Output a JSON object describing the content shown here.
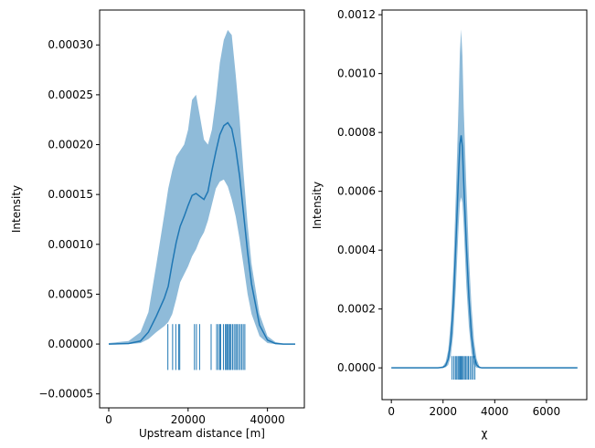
{
  "colors": {
    "line": "#1f77b4",
    "band": "#1f77b4",
    "rug": "#1f77b4",
    "axis": "#000000"
  },
  "chart_data": [
    {
      "type": "line",
      "xlabel": "Upstream distance [m]",
      "ylabel": "Intensity",
      "xlim": [
        -2300,
        49300
      ],
      "ylim": [
        -6.4e-05,
        0.000335
      ],
      "x_ticks": [
        0,
        20000,
        40000
      ],
      "x_tick_labels": [
        "0",
        "20000",
        "40000"
      ],
      "y_ticks": [
        -5e-05,
        0,
        5e-05,
        0.0001,
        0.00015,
        0.0002,
        0.00025,
        0.0003
      ],
      "y_tick_labels": [
        "−0.00005",
        "0.00000",
        "0.00005",
        "0.00010",
        "0.00015",
        "0.00020",
        "0.00025",
        "0.00030"
      ],
      "series": [
        {
          "x": [
            0,
            5000,
            8000,
            10000,
            12000,
            14000,
            15000,
            16000,
            17000,
            18000,
            19000,
            20000,
            21000,
            22000,
            23000,
            24000,
            25000,
            26000,
            27000,
            28000,
            29000,
            30000,
            31000,
            32000,
            33000,
            34000,
            35000,
            36000,
            38000,
            40000,
            42000,
            44000,
            47000
          ],
          "y": [
            0,
            5e-07,
            3e-06,
            1.2e-05,
            2.8e-05,
            4.6e-05,
            5.8e-05,
            8.1e-05,
            0.000102,
            0.000118,
            0.000128,
            0.000139,
            0.000149,
            0.000151,
            0.000148,
            0.000145,
            0.000153,
            0.000174,
            0.000193,
            0.00021,
            0.000219,
            0.000222,
            0.000216,
            0.000196,
            0.000168,
            0.00013,
            9.2e-05,
            6e-05,
            1.9e-05,
            4e-06,
            5e-07,
            0,
            0
          ]
        }
      ],
      "band": {
        "x": [
          0,
          5000,
          8000,
          10000,
          12000,
          14000,
          15000,
          16000,
          17000,
          18000,
          19000,
          20000,
          21000,
          22000,
          23000,
          24000,
          25000,
          26000,
          27000,
          28000,
          29000,
          30000,
          31000,
          32000,
          33000,
          34000,
          35000,
          36000,
          38000,
          40000,
          42000,
          44000,
          47000
        ],
        "lower": [
          0,
          0,
          1e-06,
          5e-06,
          1.2e-05,
          1.8e-05,
          2.2e-05,
          3e-05,
          4.5e-05,
          6.2e-05,
          7e-05,
          7.8e-05,
          8.8e-05,
          9.5e-05,
          0.000105,
          0.000112,
          0.000124,
          0.00014,
          0.000156,
          0.000163,
          0.000165,
          0.000158,
          0.000145,
          0.000128,
          0.000105,
          7.8e-05,
          5e-05,
          3e-05,
          8e-06,
          1e-06,
          0,
          0,
          0
        ],
        "upper": [
          1e-06,
          3e-06,
          1.2e-05,
          3.2e-05,
          8e-05,
          0.00013,
          0.000156,
          0.000174,
          0.000188,
          0.000194,
          0.0002,
          0.000215,
          0.000245,
          0.00025,
          0.000228,
          0.000205,
          0.0002,
          0.000215,
          0.000245,
          0.000282,
          0.000305,
          0.000315,
          0.00031,
          0.00027,
          0.000225,
          0.00017,
          0.00012,
          8e-05,
          3e-05,
          8e-06,
          2e-06,
          5e-07,
          0
        ]
      },
      "rug": [
        14900,
        16100,
        16900,
        17600,
        17900,
        21600,
        22100,
        22900,
        25800,
        27200,
        27600,
        28000,
        28200,
        28900,
        29400,
        29700,
        29900,
        30200,
        30500,
        30800,
        31200,
        31600,
        32000,
        32300,
        32700,
        33100,
        33500,
        33900,
        34300
      ]
    },
    {
      "type": "line",
      "xlabel": "χ",
      "ylabel": "Intensity",
      "xlim": [
        -360,
        7560
      ],
      "ylim": [
        -0.000108,
        0.001216
      ],
      "x_ticks": [
        0,
        2000,
        4000,
        6000
      ],
      "x_tick_labels": [
        "0",
        "2000",
        "4000",
        "6000"
      ],
      "y_ticks": [
        0,
        0.0002,
        0.0004,
        0.0006,
        0.0008,
        0.001,
        0.0012
      ],
      "y_tick_labels": [
        "0.0000",
        "0.0002",
        "0.0004",
        "0.0006",
        "0.0008",
        "0.0010",
        "0.0012"
      ],
      "series": [
        {
          "x": [
            0,
            1800,
            2000,
            2100,
            2200,
            2300,
            2400,
            2500,
            2600,
            2650,
            2700,
            2750,
            2800,
            2900,
            3000,
            3100,
            3200,
            3300,
            3400,
            3500,
            3700,
            7200
          ],
          "y": [
            0,
            0,
            2e-06,
            8e-06,
            3e-05,
            9e-05,
            0.00022,
            0.00043,
            0.00066,
            0.00076,
            0.00079,
            0.00075,
            0.00063,
            0.00042,
            0.00024,
            0.00011,
            4e-05,
            1e-05,
            2e-06,
            0,
            0,
            0
          ]
        }
      ],
      "band": {
        "x": [
          0,
          1800,
          2000,
          2100,
          2200,
          2300,
          2400,
          2500,
          2600,
          2650,
          2700,
          2750,
          2800,
          2900,
          3000,
          3100,
          3200,
          3300,
          3400,
          3500,
          3700,
          7200
        ],
        "lower": [
          0,
          0,
          0,
          2e-06,
          1e-05,
          4e-05,
          0.00012,
          0.00028,
          0.00048,
          0.00056,
          0.00058,
          0.00056,
          0.00048,
          0.00028,
          0.00014,
          5e-05,
          1e-05,
          0,
          0,
          0,
          0,
          0
        ],
        "upper": [
          0,
          0,
          6e-06,
          2e-05,
          6e-05,
          0.00016,
          0.00034,
          0.0006,
          0.0009,
          0.00107,
          0.00115,
          0.00106,
          0.00088,
          0.00062,
          0.00038,
          0.00021,
          9e-05,
          3e-05,
          6e-06,
          0,
          0,
          0
        ]
      },
      "rug": [
        2350,
        2420,
        2480,
        2530,
        2580,
        2620,
        2660,
        2700,
        2740,
        2780,
        2830,
        2880,
        2930,
        2980,
        3040,
        3100,
        3160,
        3230
      ]
    }
  ]
}
